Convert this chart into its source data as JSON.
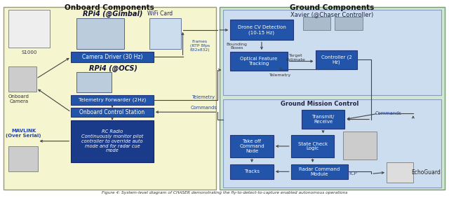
{
  "fig_width": 6.4,
  "fig_height": 2.83,
  "dpi": 100,
  "bg_color": "#ffffff",
  "onboard_bg": "#f5f5d0",
  "ground_bg": "#d0e8d0",
  "xavier_bg": "#ccddf0",
  "gmission_bg": "#ccddf0",
  "box_blue_dark": "#1a3a8a",
  "box_blue_mid": "#2255aa",
  "box_blue_header": "#5577bb",
  "caption": "Figure 4: System-level diagram of CHASER demonstrating the fly-to-detect-to-capture enabled autonomous operations",
  "title_onboard": "Onboard Components",
  "title_ground": "Ground Components",
  "title_xavier": "Xavier (@Chaser Controller)",
  "title_gmission": "Ground Mission Control",
  "label_rpi4_gimbal": "RPi4 (@Gimbal)",
  "label_rpi4_ocs": "RPi4 (@OCS)",
  "label_wifi": "WiFi Card",
  "label_camera_driver": "Camera Driver (30 Hz)",
  "label_frames": "Frames\n(RTP 8fps\n832x832)",
  "label_telemetry_fwd": "Telemetry Forwarder (2Hz)",
  "label_ocs": "Onboard Control Station",
  "label_rc_radio": "RC Radio\nContinuously monitor pilot\ncontroller to override auto\nmode and for radar cue\nmode",
  "label_mavlink": "MAVLINK\n(Over Serial)",
  "label_s1000": "S1000",
  "label_onboard_camera": "Onboard\nCamera",
  "label_drone_cv": "Drone CV Detection\n(10-15 Hz)",
  "label_bounding": "Bounding\nBoxes",
  "label_optical": "Optical Feature\nTracking",
  "label_target_est": "Target\nEstimate",
  "label_controller2hz": "Controller (2\nHz)",
  "label_telemetry": "Telemetry",
  "label_telemetry2": "Telemetry",
  "label_commands": "Commands",
  "label_commands2": "Commands",
  "label_transmit": "Transmit/\nReceive",
  "label_takeoff": "Take off\nCommand\nNode",
  "label_state_check": "State Check\nLogic",
  "label_tracks": "Tracks",
  "label_radar_cmd": "Radar Command\nModule",
  "label_tcp": "TCP",
  "label_echoguard": "EchoGuard"
}
